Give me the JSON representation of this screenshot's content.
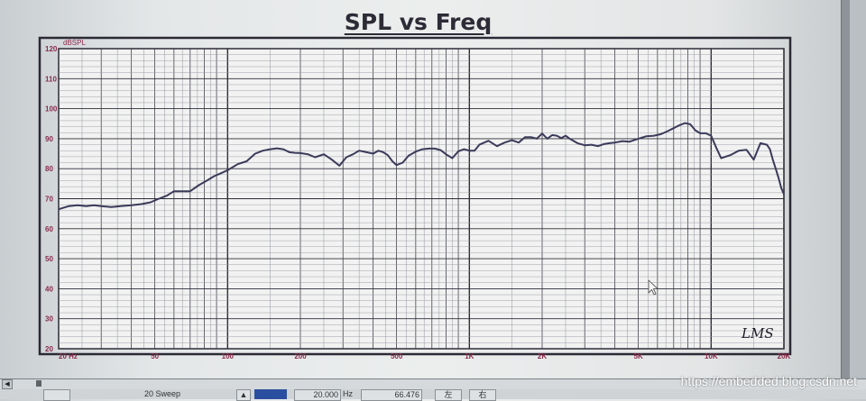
{
  "window": {
    "title": "SPL vs Freq"
  },
  "chart_data": {
    "type": "line",
    "title": "SPL vs Freq",
    "ylabel": "dBSPL",
    "xlabel": "",
    "x_scale": "log",
    "xlim": [
      20,
      20000
    ],
    "ylim": [
      20,
      120
    ],
    "grid": true,
    "y_ticks": [
      "20",
      "30",
      "40",
      "50",
      "60",
      "70",
      "80",
      "90",
      "100",
      "110",
      "120"
    ],
    "x_ticks": [
      "20 Hz",
      "50",
      "100",
      "200",
      "500",
      "1K",
      "2K",
      "5K",
      "10K",
      "20K"
    ],
    "annotation": "LMS",
    "series": [
      {
        "color": "#3b3a5a",
        "x": [
          20,
          22,
          24,
          26,
          28,
          30,
          33,
          36,
          40,
          44,
          48,
          52,
          56,
          60,
          65,
          70,
          76,
          82,
          88,
          94,
          100,
          105,
          110,
          115,
          120,
          130,
          140,
          150,
          160,
          170,
          180,
          190,
          200,
          215,
          230,
          250,
          270,
          290,
          310,
          330,
          350,
          375,
          400,
          420,
          440,
          460,
          480,
          500,
          530,
          560,
          600,
          640,
          680,
          720,
          760,
          800,
          850,
          900,
          950,
          1000,
          1050,
          1100,
          1200,
          1300,
          1400,
          1500,
          1600,
          1700,
          1800,
          1900,
          2000,
          2100,
          2200,
          2300,
          2400,
          2500,
          2600,
          2800,
          3000,
          3200,
          3400,
          3600,
          3800,
          4000,
          4300,
          4600,
          5000,
          5400,
          5800,
          6200,
          6600,
          7000,
          7400,
          7800,
          8200,
          8600,
          9000,
          9500,
          10000,
          10500,
          11000,
          12000,
          13000,
          14000,
          15000,
          16000,
          17000,
          17500,
          18000,
          18500,
          19000,
          19500,
          20000
        ],
        "y": [
          66.5,
          67.5,
          67.8,
          67.5,
          67.8,
          67.5,
          67.2,
          67.5,
          67.8,
          68.2,
          68.8,
          70,
          71,
          72.5,
          72.5,
          72.5,
          74.5,
          76,
          77.5,
          78.5,
          79.5,
          80.5,
          81.5,
          82,
          82.5,
          85,
          86,
          86.5,
          86.8,
          86.5,
          85.5,
          85.3,
          85.2,
          84.8,
          83.8,
          84.8,
          83,
          81,
          83.8,
          84.8,
          86,
          85.5,
          85,
          86,
          85.5,
          84.5,
          82.5,
          81.2,
          82,
          84.3,
          85.7,
          86.5,
          86.7,
          86.7,
          86.2,
          84.8,
          83.5,
          85.8,
          86.5,
          86,
          86,
          88,
          89.3,
          87.5,
          88.7,
          89.5,
          88.7,
          90.5,
          90.5,
          90,
          91.7,
          90,
          91.2,
          91,
          90.2,
          91,
          90,
          88.5,
          87.8,
          88,
          87.5,
          88.2,
          88.5,
          88.7,
          89.2,
          89,
          90,
          90.8,
          91,
          91.5,
          92.5,
          93.5,
          94.5,
          95.2,
          94.8,
          92.8,
          91.8,
          91.8,
          91,
          87,
          83.5,
          84.5,
          86,
          86.3,
          83,
          88.5,
          88,
          86.5,
          83,
          80,
          77,
          73.5,
          71.5
        ]
      }
    ]
  },
  "statusbar": {
    "field1": "20  Sweep",
    "field2": "20.000",
    "field2_unit": "Hz",
    "field3": "66.476",
    "field4": "左",
    "field5": "右"
  },
  "watermark": "https://embedded.blog.csdn.net"
}
